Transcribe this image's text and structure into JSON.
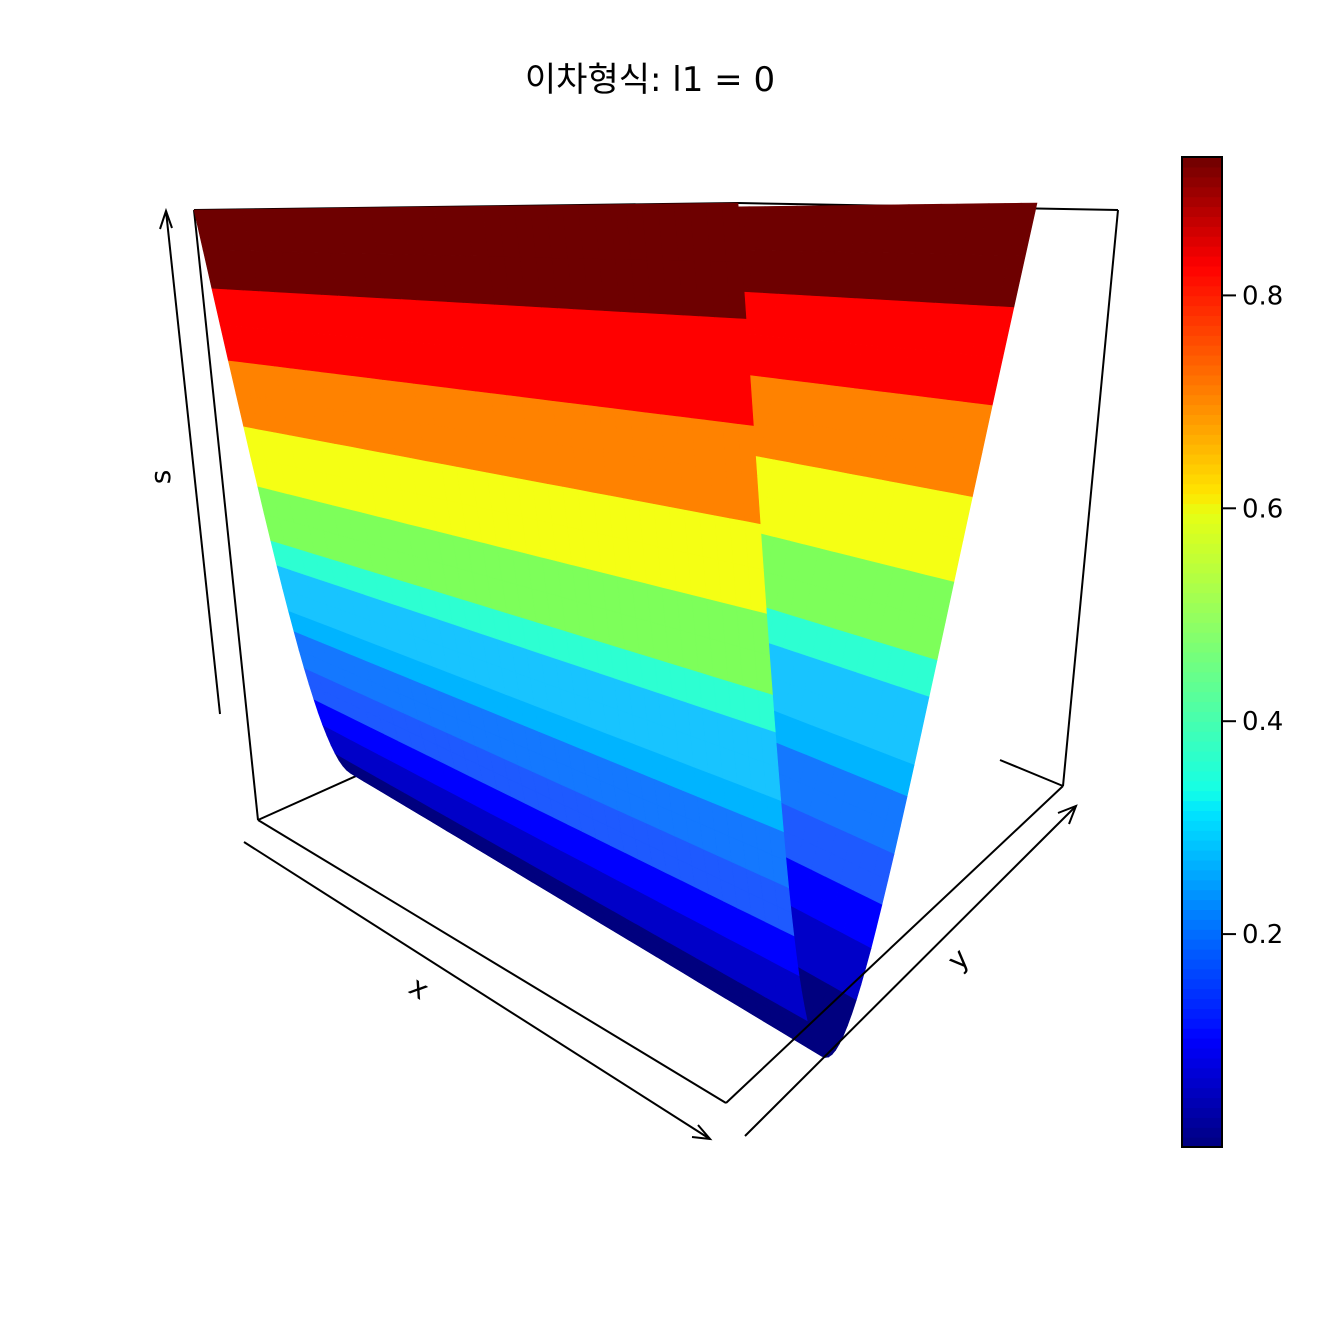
{
  "chart_data": {
    "type": "surface3d",
    "title": "이차형식: l1 =  0",
    "xlabel": "x",
    "ylabel": "y",
    "zlabel": "s",
    "function": "s = y^2 (quadratic form, eigenvalue l1 = 0)",
    "x": [
      -0.95,
      0.95
    ],
    "y": [
      -0.95,
      0.95
    ],
    "zlim": [
      0,
      0.9025
    ],
    "contour_bands": {
      "breaks": [
        0,
        0.05,
        0.1,
        0.15,
        0.2,
        0.25,
        0.3,
        0.35,
        0.4,
        0.5,
        0.6,
        0.7,
        0.8,
        0.9025
      ],
      "colors": [
        "#00007f",
        "#0000c8",
        "#0000ff",
        "#1e5aff",
        "#1478ff",
        "#00b4ff",
        "#18c4ff",
        "#2dffd2",
        "#7dff5a",
        "#f5ff14",
        "#ff8200",
        "#ff0000",
        "#6e0000"
      ]
    },
    "colorkey": {
      "ticks": [
        0.2,
        0.4,
        0.6,
        0.8
      ],
      "tick_labels": [
        "0.2",
        "0.4",
        "0.6",
        "0.8"
      ],
      "range": [
        0,
        0.93
      ],
      "palette": "jet"
    },
    "grid": false,
    "legend": "right"
  }
}
